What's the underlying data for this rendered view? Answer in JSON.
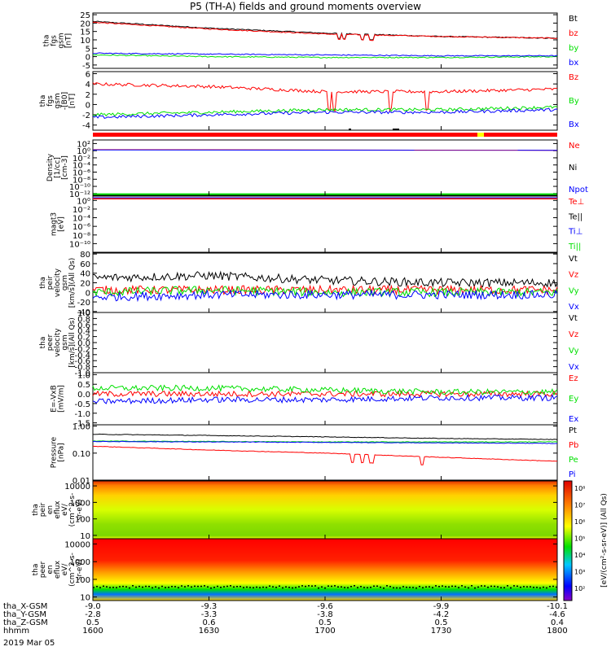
{
  "title": "P5 (TH-A) fields and ground moments overview",
  "colors": {
    "black": "#000000",
    "red": "#ff0000",
    "green": "#00e000",
    "blue": "#0000ff",
    "yellow": "#ffff00"
  },
  "panels": [
    {
      "id": "fgs",
      "ylabel": [
        "tha",
        "fgs",
        "gsm",
        "[nT]"
      ],
      "scale": "linear",
      "yrange": [
        -7,
        26
      ],
      "ticks": [
        {
          "v": 25,
          "t": "25"
        },
        {
          "v": 20,
          "t": "20"
        },
        {
          "v": 15,
          "t": "15"
        },
        {
          "v": 10,
          "t": "10"
        },
        {
          "v": 5,
          "t": "5"
        },
        {
          "v": 0,
          "t": "0"
        },
        {
          "v": -5,
          "t": "-5"
        }
      ],
      "legend": [
        {
          "t": "Bt",
          "c": "black"
        },
        {
          "t": "bz",
          "c": "red"
        },
        {
          "t": "by",
          "c": "green"
        },
        {
          "t": "bx",
          "c": "blue"
        }
      ]
    },
    {
      "id": "fgs-fac",
      "ylabel": [
        "tha",
        "fgs",
        "gsm",
        "-[B0]",
        "[nT]"
      ],
      "scale": "linear",
      "yrange": [
        -5,
        6.4
      ],
      "ticks": [
        {
          "v": 6,
          "t": "6"
        },
        {
          "v": 4,
          "t": "4"
        },
        {
          "v": 2,
          "t": "2"
        },
        {
          "v": 0,
          "t": "0"
        },
        {
          "v": -2,
          "t": "-2"
        },
        {
          "v": -4,
          "t": "-4"
        }
      ],
      "legend": [
        {
          "t": "Bz",
          "c": "red"
        },
        {
          "t": "By",
          "c": "green"
        },
        {
          "t": "Bx",
          "c": "blue"
        }
      ]
    },
    {
      "id": "density",
      "ylabel": [
        "Density",
        "[1/cc]",
        "[cm-3]"
      ],
      "scale": "log",
      "yrange": [
        -12.5,
        3
      ],
      "ticks": [
        {
          "v": 2,
          "t": "10²"
        },
        {
          "v": 0,
          "t": "10⁰"
        },
        {
          "v": -2,
          "t": "10⁻²"
        },
        {
          "v": -4,
          "t": "10⁻⁴"
        },
        {
          "v": -6,
          "t": "10⁻⁶"
        },
        {
          "v": -8,
          "t": "10⁻⁸"
        },
        {
          "v": -10,
          "t": "10⁻¹⁰"
        },
        {
          "v": -12,
          "t": "10⁻¹²"
        }
      ],
      "legend": [
        {
          "t": "Ne",
          "c": "red"
        },
        {
          "t": "Ni",
          "c": "black"
        },
        {
          "t": "Npot",
          "c": "blue"
        }
      ]
    },
    {
      "id": "temp",
      "ylabel": [
        "magt3",
        "[eV]"
      ],
      "scale": "log",
      "yrange": [
        -12,
        1
      ],
      "ticks": [
        {
          "v": 0,
          "t": "10⁰"
        },
        {
          "v": -2,
          "t": "10⁻²"
        },
        {
          "v": -4,
          "t": "10⁻⁴"
        },
        {
          "v": -6,
          "t": "10⁻⁶"
        },
        {
          "v": -8,
          "t": "10⁻⁸"
        },
        {
          "v": -10,
          "t": "10⁻¹⁰"
        }
      ],
      "legend": [
        {
          "t": "Te⊥",
          "c": "red"
        },
        {
          "t": "Te||",
          "c": "black"
        },
        {
          "t": "Ti⊥",
          "c": "blue"
        },
        {
          "t": "Ti||",
          "c": "green"
        }
      ]
    },
    {
      "id": "peir-vel",
      "ylabel": [
        "tha",
        "peir",
        "velocity",
        "gsm",
        "[km/s](All Qs)"
      ],
      "scale": "linear",
      "yrange": [
        -42,
        82
      ],
      "ticks": [
        {
          "v": 80,
          "t": "80"
        },
        {
          "v": 60,
          "t": "60"
        },
        {
          "v": 40,
          "t": "40"
        },
        {
          "v": 20,
          "t": "20"
        },
        {
          "v": 0,
          "t": "0"
        },
        {
          "v": -20,
          "t": "-20"
        },
        {
          "v": -40,
          "t": "-40"
        }
      ],
      "legend": [
        {
          "t": "Vt",
          "c": "black"
        },
        {
          "t": "Vz",
          "c": "red"
        },
        {
          "t": "Vy",
          "c": "green"
        },
        {
          "t": "Vx",
          "c": "blue"
        }
      ]
    },
    {
      "id": "peer-vel",
      "ylabel": [
        "tha",
        "peer",
        "velocity",
        "gsm",
        "[km/s](All Qs)"
      ],
      "scale": "linear",
      "yrange": [
        -1,
        1
      ],
      "ticks": [
        {
          "v": 1,
          "t": "1.0"
        },
        {
          "v": 0.8,
          "t": "0.8"
        },
        {
          "v": 0.6,
          "t": "0.6"
        },
        {
          "v": 0.4,
          "t": "0.4"
        },
        {
          "v": 0.2,
          "t": "0.2"
        },
        {
          "v": 0,
          "t": "0.0"
        },
        {
          "v": -0.2,
          "t": "-0.2"
        },
        {
          "v": -0.4,
          "t": "-0.4"
        },
        {
          "v": -0.6,
          "t": "-0.6"
        },
        {
          "v": -0.8,
          "t": "-0.8"
        },
        {
          "v": -1,
          "t": "-1.0"
        }
      ],
      "legend": [
        {
          "t": "Vt",
          "c": "black"
        },
        {
          "t": "Vz",
          "c": "red"
        },
        {
          "t": "Vy",
          "c": "green"
        },
        {
          "t": "Vx",
          "c": "blue"
        }
      ]
    },
    {
      "id": "efield",
      "ylabel": [
        "E=-VxB",
        "[mV/m]"
      ],
      "scale": "linear",
      "yrange": [
        -1.6,
        1.1
      ],
      "ticks": [
        {
          "v": 1,
          "t": "1.0"
        },
        {
          "v": 0.5,
          "t": "0.5"
        },
        {
          "v": 0,
          "t": "0.0"
        },
        {
          "v": -0.5,
          "t": "-0.5"
        },
        {
          "v": -1,
          "t": "-1.0"
        },
        {
          "v": -1.5,
          "t": "-1.5"
        }
      ],
      "legend": [
        {
          "t": "Ez",
          "c": "red"
        },
        {
          "t": "Ey",
          "c": "green"
        },
        {
          "t": "Ex",
          "c": "blue"
        }
      ]
    },
    {
      "id": "pressure",
      "ylabel": [
        "Pressure",
        "[nPa]"
      ],
      "scale": "log",
      "yrange": [
        -2,
        0.05
      ],
      "ticks": [
        {
          "v": 0,
          "t": "1.00"
        },
        {
          "v": -1,
          "t": "0.10"
        },
        {
          "v": -2,
          "t": "0.01"
        }
      ],
      "legend": [
        {
          "t": "Pt",
          "c": "black"
        },
        {
          "t": "Pb",
          "c": "red"
        },
        {
          "t": "Pe",
          "c": "green"
        },
        {
          "t": "Pi",
          "c": "blue"
        }
      ]
    },
    {
      "id": "peir-en",
      "ylabel": [
        "tha",
        "peir",
        "en",
        "eflux",
        "eV/",
        "(cm^2-s-",
        "sr-eV)"
      ],
      "scale": "log",
      "yrange": [
        0.8,
        4.3
      ],
      "ticks": [
        {
          "v": 4,
          "t": "10000"
        },
        {
          "v": 3,
          "t": "1000"
        },
        {
          "v": 2,
          "t": "100"
        },
        {
          "v": 1,
          "t": "10"
        }
      ],
      "legend": []
    },
    {
      "id": "peer-en",
      "ylabel": [
        "tha",
        "peer",
        "en",
        "eflux",
        "eV/",
        "(cm^2-s-",
        "sr-eV)"
      ],
      "scale": "log",
      "yrange": [
        0.8,
        4.3
      ],
      "ticks": [
        {
          "v": 4,
          "t": "10000"
        },
        {
          "v": 3,
          "t": "1000"
        },
        {
          "v": 2,
          "t": "100"
        },
        {
          "v": 1,
          "t": "10"
        }
      ],
      "legend": []
    }
  ],
  "colorbar_unit": "[eV/(cm²-s-sr-eV)] (All Qs)",
  "colorbar_ticks": [
    "10⁸",
    "10⁷",
    "10⁶",
    "10⁵",
    "10⁴",
    "10³",
    "10²"
  ],
  "xaxis": {
    "rows": [
      "tha_X-GSM",
      "tha_Y-GSM",
      "tha_Z-GSM",
      "hhmm"
    ],
    "date": "2019 Mar 05",
    "ticks": [
      {
        "v": [
          "-9.0",
          "-2.8",
          "0.5",
          "1600"
        ]
      },
      {
        "v": [
          "-9.3",
          "-3.3",
          "0.6",
          "1630"
        ]
      },
      {
        "v": [
          "-9.6",
          "-3.8",
          "0.5",
          "1700"
        ]
      },
      {
        "v": [
          "-9.9",
          "-4.2",
          "0.5",
          "1730"
        ]
      },
      {
        "v": [
          "-10.1",
          "-4.6",
          "0.4",
          "1800"
        ]
      }
    ]
  },
  "chart_data": {
    "type": "line",
    "title": "P5 (TH-A) fields and ground moments overview",
    "x": [
      "1600",
      "1630",
      "1700",
      "1730",
      "1800"
    ],
    "series": [
      {
        "name": "Bt",
        "panel": "fgs",
        "values": [
          21,
          17,
          14,
          12,
          11
        ]
      },
      {
        "name": "bz",
        "panel": "fgs",
        "values": [
          20.5,
          16.5,
          13.5,
          12,
          11
        ]
      },
      {
        "name": "by",
        "panel": "fgs",
        "values": [
          1,
          0,
          -0.5,
          -0.5,
          0
        ]
      },
      {
        "name": "bx",
        "panel": "fgs",
        "values": [
          2,
          1.5,
          1,
          0.5,
          0.5
        ]
      },
      {
        "name": "Bz",
        "panel": "fgs-fac",
        "values": [
          4,
          3.5,
          2.5,
          2.5,
          3
        ]
      },
      {
        "name": "By",
        "panel": "fgs-fac",
        "values": [
          -2,
          -1.5,
          -1,
          -1,
          -0.5
        ]
      },
      {
        "name": "Bx",
        "panel": "fgs-fac",
        "values": [
          -2.5,
          -2,
          -1.5,
          -1.5,
          -1
        ]
      },
      {
        "name": "Vt",
        "panel": "peir-vel",
        "values": [
          30,
          35,
          25,
          20,
          20
        ]
      },
      {
        "name": "Vz",
        "panel": "peir-vel",
        "values": [
          5,
          5,
          5,
          5,
          5
        ]
      },
      {
        "name": "Vy",
        "panel": "peir-vel",
        "values": [
          0,
          5,
          0,
          0,
          0
        ]
      },
      {
        "name": "Vx",
        "panel": "peir-vel",
        "values": [
          -10,
          -5,
          -5,
          -5,
          -5
        ]
      },
      {
        "name": "Ez",
        "panel": "efield",
        "values": [
          0,
          0,
          0,
          0,
          0
        ]
      },
      {
        "name": "Ey",
        "panel": "efield",
        "values": [
          0.3,
          0.3,
          0.2,
          0.1,
          0.1
        ]
      },
      {
        "name": "Ex",
        "panel": "efield",
        "values": [
          -0.4,
          -0.3,
          -0.3,
          -0.2,
          -0.2
        ]
      },
      {
        "name": "Pt",
        "panel": "pressure",
        "values": [
          0.5,
          0.45,
          0.4,
          0.35,
          0.32
        ]
      },
      {
        "name": "Pb",
        "panel": "pressure",
        "values": [
          0.18,
          0.13,
          0.1,
          0.07,
          0.05
        ]
      },
      {
        "name": "Pe",
        "panel": "pressure",
        "values": [
          0.28,
          0.27,
          0.26,
          0.26,
          0.26
        ]
      },
      {
        "name": "Pi",
        "panel": "pressure",
        "values": [
          0.27,
          0.26,
          0.25,
          0.24,
          0.23
        ]
      }
    ]
  }
}
